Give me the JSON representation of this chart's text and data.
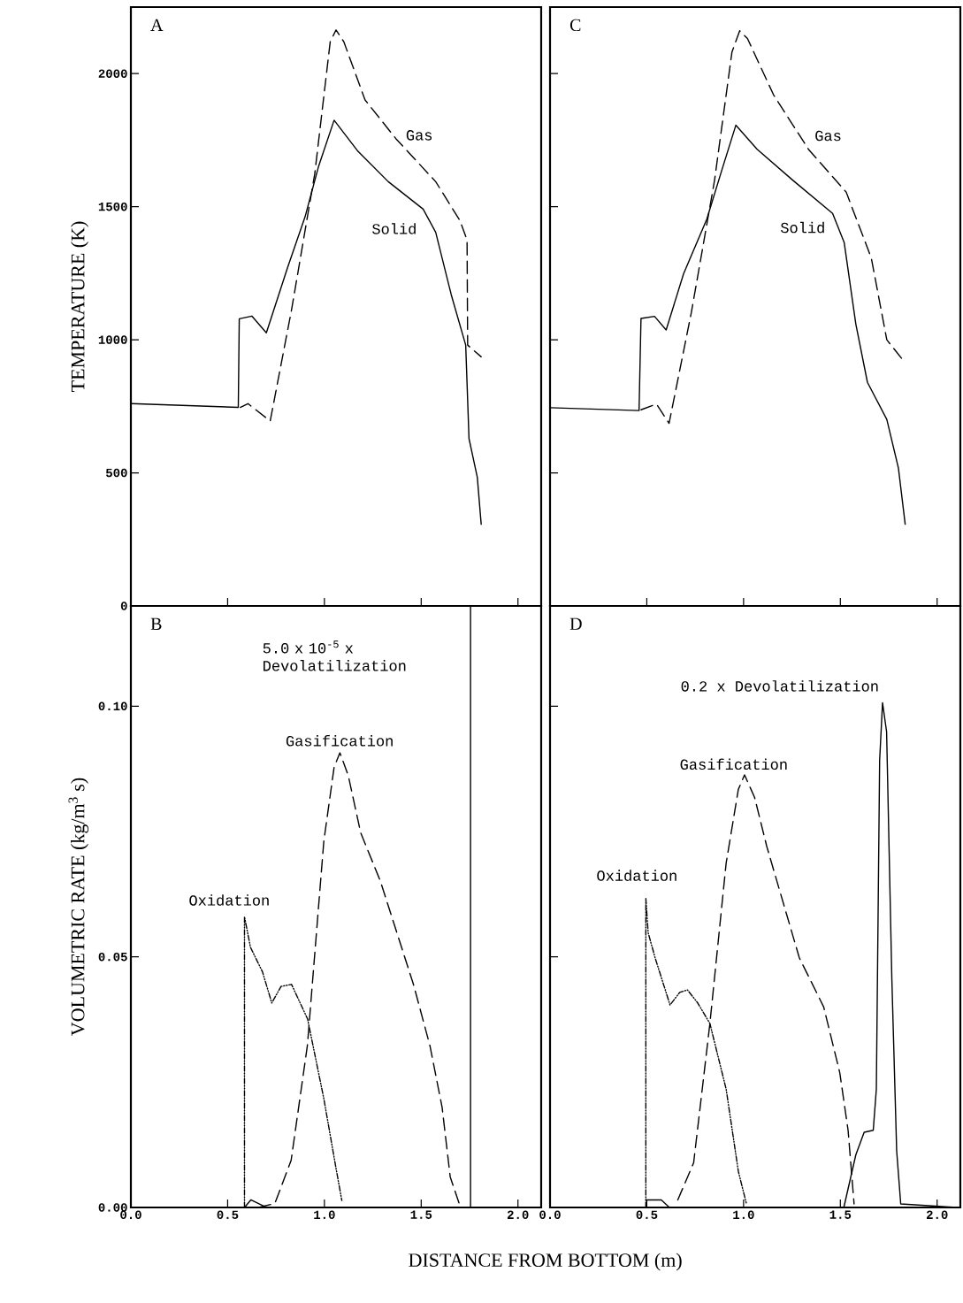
{
  "chart_data": [
    {
      "type": "line",
      "ylabel": "TEMPERATURE (K)",
      "xlim": [
        0,
        2.12
      ],
      "ylim": [
        0,
        2250
      ],
      "xticks": [
        {
          "value": 0,
          "label": null
        },
        {
          "value": 0.5,
          "label": null
        },
        {
          "value": 1,
          "label": null
        },
        {
          "value": 1.5,
          "label": null
        },
        {
          "value": 2,
          "label": null
        }
      ],
      "yticks": [
        0,
        500,
        1000,
        1500,
        2000
      ],
      "tick_labels": "y",
      "annotations": [
        "A",
        "Gas",
        "Solid"
      ],
      "series": [
        {
          "color": "#000000",
          "line_style": "solid",
          "x": [
            0,
            0.555,
            0.56,
            0.625,
            0.7,
            0.81,
            0.9,
            0.97,
            1.05,
            1.17,
            1.33,
            1.51,
            1.575,
            1.655,
            1.73,
            1.747,
            1.79,
            1.81
          ],
          "values": [
            760,
            746,
            1079,
            1089,
            1026,
            1272,
            1462,
            1652,
            1825,
            1711,
            1594,
            1491,
            1404,
            1170,
            980,
            629,
            483,
            307
          ]
        },
        {
          "color": "#000000",
          "line_style": "dashed",
          "x": [
            0.565,
            0.605,
            0.72,
            0.83,
            0.95,
            1.03,
            1.06,
            1.1,
            1.21,
            1.37,
            1.575,
            1.7,
            1.737,
            1.74,
            1.81
          ],
          "values": [
            746,
            760,
            695,
            1112,
            1623,
            2120,
            2164,
            2120,
            1901,
            1755,
            1594,
            1448,
            1375,
            980,
            936
          ]
        }
      ]
    },
    {
      "type": "line",
      "xlim": [
        0,
        2.12
      ],
      "ylim": [
        0,
        2250
      ],
      "xticks": [
        {
          "value": 0,
          "label": null
        },
        {
          "value": 0.5,
          "label": null
        },
        {
          "value": 1,
          "label": null
        },
        {
          "value": 1.5,
          "label": null
        },
        {
          "value": 2,
          "label": null
        }
      ],
      "yticks": [
        {
          "value": 0,
          "label": null
        },
        {
          "value": 500,
          "label": null
        },
        {
          "value": 1000,
          "label": null
        },
        {
          "value": 1500,
          "label": null
        },
        {
          "value": 2000,
          "label": null
        }
      ],
      "tick_labels": false,
      "annotations": [
        "C",
        "Gas",
        "Solid"
      ],
      "series": [
        {
          "color": "#000000",
          "line_style": "solid",
          "x": [
            0.0,
            0.46,
            0.47,
            0.54,
            0.6,
            0.69,
            0.81,
            0.89,
            0.96,
            1.07,
            1.255,
            1.46,
            1.52,
            1.58,
            1.64,
            1.74,
            1.8,
            1.835
          ],
          "values": [
            745,
            734,
            1080,
            1088,
            1037,
            1248,
            1453,
            1643,
            1806,
            1716,
            1599,
            1475,
            1365,
            1059,
            840,
            701,
            518,
            307
          ]
        },
        {
          "color": "#000000",
          "line_style": "dashed",
          "x": [
            0.47,
            0.55,
            0.615,
            0.73,
            0.85,
            0.94,
            0.98,
            1.02,
            1.155,
            1.335,
            1.53,
            1.66,
            1.74,
            1.82
          ],
          "values": [
            737,
            759,
            686,
            1102,
            1599,
            2081,
            2161,
            2132,
            1920,
            1716,
            1555,
            1307,
            1000,
            927
          ]
        }
      ]
    },
    {
      "type": "line",
      "xlabel": "DISTANCE FROM BOTTOM (m)",
      "ylabel": "VOLUMETRIC RATE (kg/m$^{3}$ s)",
      "xlim": [
        0,
        2.12
      ],
      "ylim": [
        0,
        0.12
      ],
      "xticks": [
        {
          "value": 0,
          "label": "0.0"
        },
        {
          "value": 0.5,
          "label": "0.5"
        },
        {
          "value": 1,
          "label": "1.0"
        },
        {
          "value": 1.5,
          "label": "1.5"
        },
        {
          "value": 2,
          "label": "2.0"
        }
      ],
      "yticks": [
        {
          "value": 0,
          "label": "0.00"
        },
        {
          "value": 0.05,
          "label": "0.05"
        },
        {
          "value": 0.1,
          "label": "0.10"
        }
      ],
      "annotations": [
        "B",
        "5.0 x 10$^{-5}$ x Devolatilization",
        "Gasification",
        "Oxidation"
      ],
      "series": [
        {
          "color": "#000000",
          "line_style": "dotted",
          "x": [
            0.587,
            0.587,
            0.618,
            0.68,
            0.728,
            0.776,
            0.83,
            0.913,
            0.997,
            1.06,
            1.09
          ],
          "values": [
            0,
            0.058,
            0.0519,
            0.047,
            0.0408,
            0.0441,
            0.0445,
            0.0376,
            0.0217,
            0.0078,
            0.0014
          ]
        },
        {
          "color": "#000000",
          "line_style": "dashed",
          "x": [
            0.66,
            0.744,
            0.828,
            0.912,
            0.997,
            1.05,
            1.08,
            1.123,
            1.187,
            1.29,
            1.46,
            1.545,
            1.608,
            1.65,
            1.703
          ],
          "values": [
            0,
            0.0008,
            0.0094,
            0.0323,
            0.0731,
            0.0878,
            0.0907,
            0.0862,
            0.0748,
            0.065,
            0.0445,
            0.0323,
            0.02,
            0.0061,
            0
          ]
        },
        {
          "color": "#000000",
          "line_style": "solid",
          "x": [
            0.587,
            0.62,
            0.7,
            1.755,
            1.755
          ],
          "values": [
            0,
            0.0015,
            0,
            0,
            0.12
          ]
        }
      ]
    },
    {
      "type": "line",
      "xlim": [
        0,
        2.12
      ],
      "ylim": [
        0,
        0.12
      ],
      "xticks": [
        {
          "value": 0,
          "label": "0.0"
        },
        {
          "value": 0.5,
          "label": "0.5"
        },
        {
          "value": 1,
          "label": "1.0"
        },
        {
          "value": 1.5,
          "label": "1.5"
        },
        {
          "value": 2,
          "label": "2.0"
        }
      ],
      "yticks": [
        {
          "value": 0,
          "label": null
        },
        {
          "value": 0.05,
          "label": null
        },
        {
          "value": 0.1,
          "label": null
        }
      ],
      "tick_labels": "x",
      "annotations": [
        "D",
        "0.2 x Devolatilization",
        "Gasification",
        "Oxidation"
      ],
      "series": [
        {
          "color": "#000000",
          "line_style": "dotted",
          "x": [
            0.495,
            0.495,
            0.507,
            0.543,
            0.62,
            0.67,
            0.71,
            0.763,
            0.826,
            0.91,
            0.973,
            1.015
          ],
          "values": [
            0,
            0.0617,
            0.0548,
            0.0498,
            0.0404,
            0.0429,
            0.0434,
            0.0408,
            0.0367,
            0.0236,
            0.0072,
            0.0007
          ]
        },
        {
          "color": "#000000",
          "line_style": "dashed",
          "x": [
            0.66,
            0.742,
            0.826,
            0.91,
            0.973,
            1.005,
            1.057,
            1.12,
            1.288,
            1.414,
            1.497,
            1.54,
            1.571
          ],
          "values": [
            0.0015,
            0.0089,
            0.0367,
            0.0687,
            0.0834,
            0.0863,
            0.0818,
            0.072,
            0.0498,
            0.04,
            0.0269,
            0.0154,
            0.0007
          ]
        },
        {
          "color": "#000000",
          "line_style": "solid",
          "x": [
            0.495,
            0.575,
            0.617,
            1.518,
            1.58,
            1.623,
            1.67,
            1.686,
            1.703,
            1.718,
            1.739,
            1.766,
            1.791,
            1.812,
            2.1
          ],
          "values": [
            0.0015,
            0.0015,
            0,
            0,
            0.0105,
            0.015,
            0.0154,
            0.0236,
            0.0892,
            0.1007,
            0.0949,
            0.0457,
            0.0113,
            0.0007,
            0
          ]
        }
      ]
    }
  ]
}
